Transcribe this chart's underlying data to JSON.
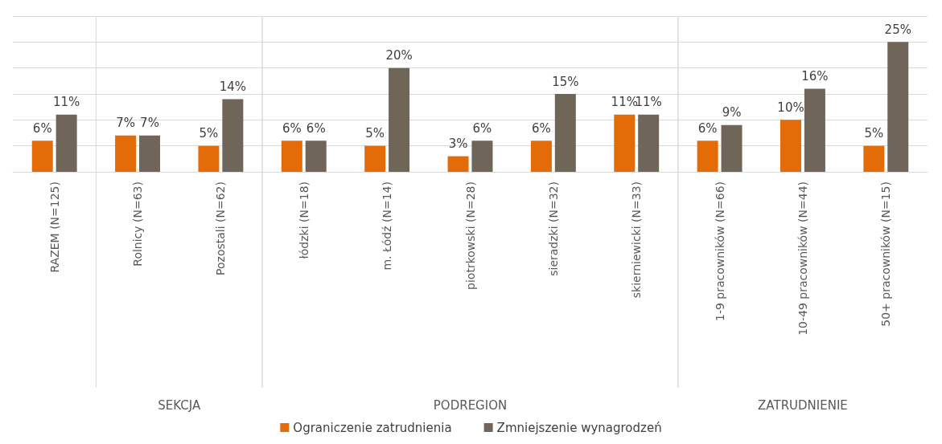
{
  "chart_data": {
    "type": "bar",
    "categories": [
      "RAZEM (N=125)",
      "Rolnicy (N=63)",
      "Pozostali (N=62)",
      "łódzki (N=18)",
      "m. Łódź (N=14)",
      "piotrkowski (N=28)",
      "sieradzki (N=32)",
      "skierniewicki (N=33)",
      "1-9 pracowników (N=66)",
      "10-49 pracowników (N=44)",
      "50+ pracowników (N=15)"
    ],
    "series": [
      {
        "name": "Ograniczenie zatrudnienia",
        "color": "#e36c09",
        "values": [
          6,
          7,
          5,
          6,
          5,
          3,
          6,
          11,
          6,
          10,
          5
        ],
        "value_labels": [
          "6%",
          "7%",
          "5%",
          "6%",
          "5%",
          "3%",
          "6%",
          "11%",
          "6%",
          "10%",
          "5%"
        ]
      },
      {
        "name": "Zmniejszenie wynagrodzeń",
        "color": "#6f6559",
        "values": [
          11,
          7,
          14,
          6,
          20,
          6,
          15,
          11,
          9,
          16,
          25
        ],
        "value_labels": [
          "11%",
          "7%",
          "14%",
          "6%",
          "20%",
          "6%",
          "15%",
          "11%",
          "9%",
          "16%",
          "25%"
        ]
      }
    ],
    "annotations": [
      "SEKCJA",
      "PODREGION",
      "ZATRUDNIENIE"
    ],
    "ylim": [
      0,
      30
    ],
    "yticks": [
      0,
      5,
      10,
      15,
      20,
      25,
      30
    ],
    "tick_labels": "x",
    "grid": "y",
    "legend": "bottom"
  }
}
